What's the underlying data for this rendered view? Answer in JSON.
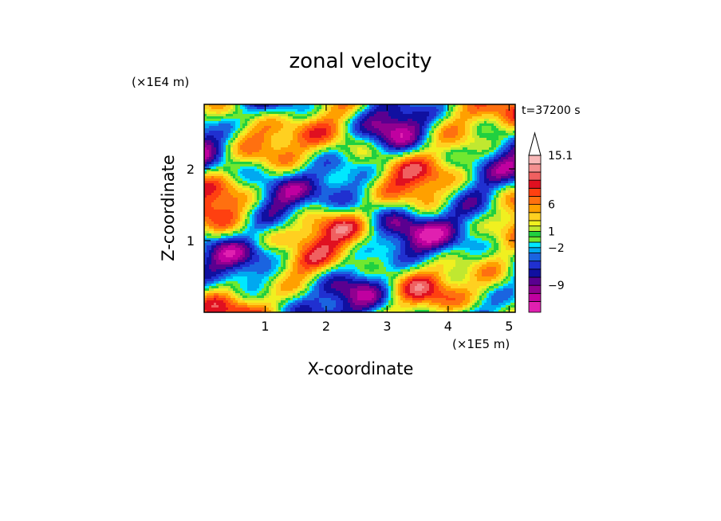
{
  "chart_data": {
    "type": "heatmap",
    "title": "zonal velocity",
    "xlabel": "X-coordinate",
    "ylabel": "Z-coordinate",
    "x_unit": "(×1E5 m)",
    "y_unit": "(×1E4 m)",
    "time_label": "t=37200 s",
    "xlim": [
      0,
      5.1
    ],
    "ylim": [
      0,
      2.9
    ],
    "x_ticks": [
      1,
      2,
      3,
      4,
      5
    ],
    "y_ticks": [
      1,
      2
    ],
    "colorbar": {
      "levels": [
        -14,
        -12,
        -10.5,
        -9,
        -7.5,
        -6,
        -4.5,
        -3,
        -2,
        -1,
        0,
        1,
        2,
        3,
        4.5,
        6,
        7.5,
        9,
        10.5,
        12,
        13.5,
        15.1
      ],
      "colors": [
        "#e020b0",
        "#c000a0",
        "#900090",
        "#5a0090",
        "#1010a0",
        "#2030d0",
        "#1a64e0",
        "#00a8f0",
        "#00e8ff",
        "#70e830",
        "#20d040",
        "#c0e830",
        "#f0f020",
        "#ffd020",
        "#ffa000",
        "#ff7010",
        "#ff4010",
        "#e01020",
        "#f06060",
        "#f49090",
        "#f8b8b8"
      ],
      "tick_labels": [
        "15.1",
        "6",
        "1",
        "−2",
        "−9"
      ],
      "tick_values": [
        15.1,
        6,
        1,
        -2,
        -9
      ],
      "extend_arrow": "top"
    }
  }
}
